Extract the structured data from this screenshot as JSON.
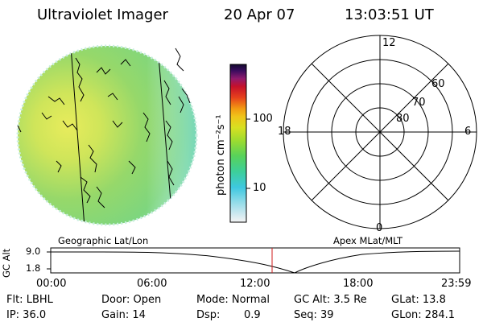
{
  "header": {
    "instrument": "Ultraviolet Imager",
    "date": "20 Apr 07",
    "time": "13:03:51 UT"
  },
  "colorbar": {
    "unit_label": "photon cm⁻²s⁻¹",
    "ticks": [
      "100",
      "10"
    ]
  },
  "polar_plot": {
    "mlt_labels": [
      "12",
      "18",
      "6",
      "0"
    ],
    "mlat_labels": [
      "60",
      "70",
      "80"
    ]
  },
  "timeline": {
    "left_label": "Geographic Lat/Lon",
    "right_label": "Apex MLat/MLT",
    "axis_label": "GC Alt",
    "y_ticks": [
      "9.0",
      "1.8"
    ],
    "x_ticks": [
      "00:00",
      "06:00",
      "12:00",
      "18:00",
      "23:59"
    ],
    "marker_color": "#d21e1e"
  },
  "footer": {
    "row1": {
      "filter": "Flt: LBHL",
      "door": "Door: Open",
      "mode": "Mode: Normal",
      "gc_alt": "GC Alt: 3.5 Re",
      "glat": "GLat:  13.8"
    },
    "row2": {
      "ip": "IP: 36.0",
      "gain": "Gain: 14",
      "dsp_label": "Dsp:",
      "dsp_value": "0.9",
      "seq": "Seq: 39",
      "glon": "GLon: 284.1"
    }
  }
}
